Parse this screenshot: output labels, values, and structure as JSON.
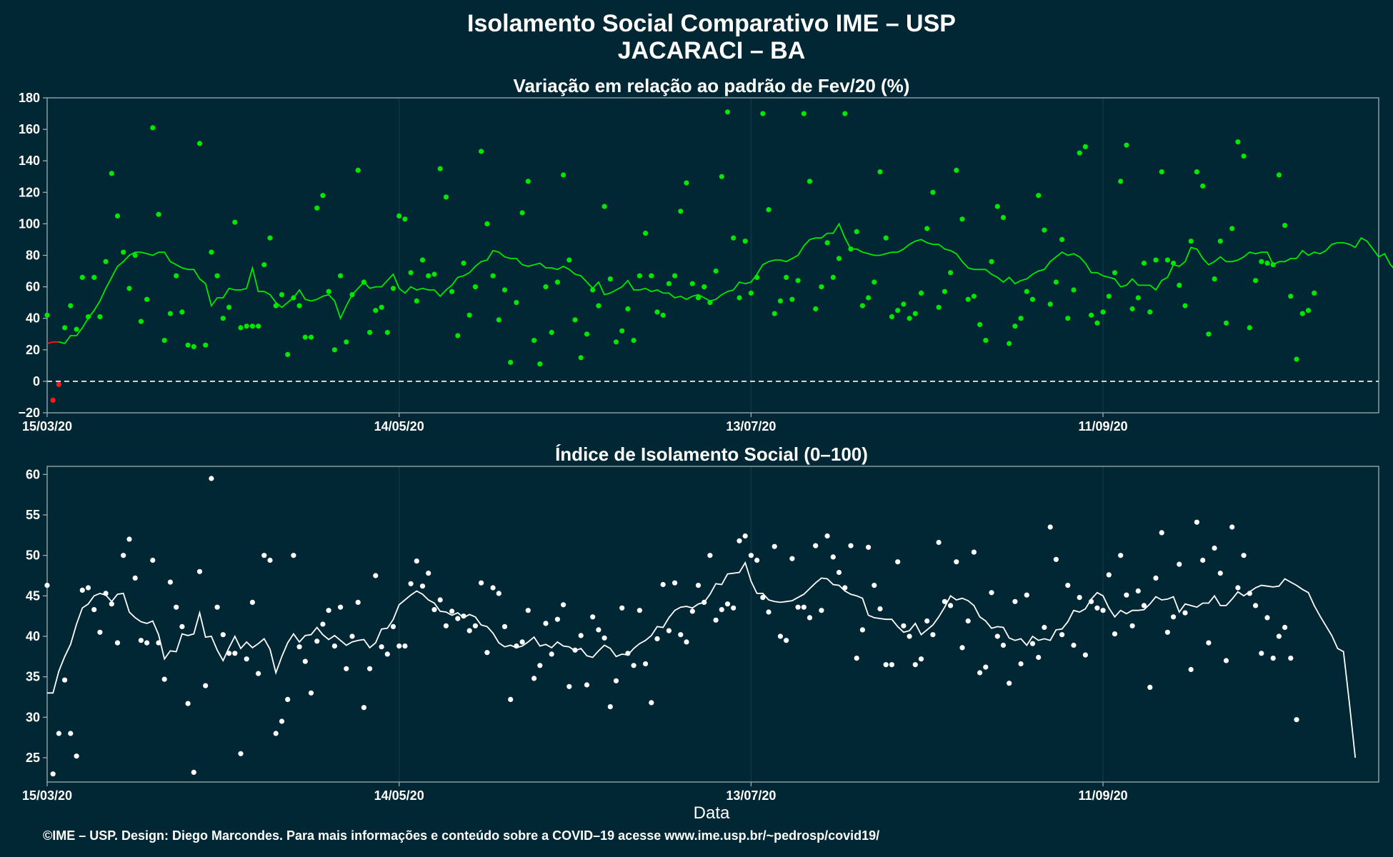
{
  "header": {
    "title": "Isolamento Social Comparativo IME – USP",
    "subtitle": "JACARACI – BA"
  },
  "footer": {
    "xlabel": "Data",
    "credit": "©IME – USP. Design: Diego Marcondes. Para mais informações e conteúdo sobre a COVID–19 acesse www.ime.usp.br/~pedrosp/covid19/"
  },
  "colors": {
    "background": "#002733",
    "axis": "#a9b7bd",
    "grid": "#12404b",
    "positive_points": "#00e800",
    "negative_points": "#ff1a1a",
    "index_points": "#ffffff"
  },
  "chart_data": [
    {
      "type": "scatter",
      "title": "Variação em relação ao padrão de Fev/20 (%)",
      "x_start": "2020-03-15",
      "x_end": "2020-10-28",
      "xlim": [
        "2020-03-15",
        "2020-10-28"
      ],
      "ylim": [
        -20,
        180
      ],
      "yticks": [
        -20,
        0,
        20,
        40,
        60,
        80,
        100,
        120,
        140,
        160,
        180
      ],
      "xticks": [
        "15/03/20",
        "14/05/20",
        "13/07/20",
        "11/09/20"
      ],
      "reference_line": 0,
      "grid": true,
      "series": [
        {
          "kind": "points",
          "values": [
            42,
            -12,
            -2,
            34,
            48,
            33,
            66,
            41,
            66,
            41,
            76,
            132,
            105,
            82,
            59,
            80,
            38,
            52,
            161,
            106,
            26,
            43,
            67,
            44,
            23,
            22,
            151,
            23,
            82,
            67,
            40,
            47,
            101,
            34,
            35,
            35,
            35,
            74,
            91,
            48,
            55,
            17,
            53,
            48,
            28,
            28,
            110,
            118,
            57,
            20,
            67,
            25,
            55,
            134,
            63,
            31,
            45,
            47,
            31,
            59,
            105,
            103,
            69,
            51,
            77,
            67,
            68,
            135,
            117,
            57,
            29,
            75,
            42,
            60,
            146,
            100,
            67,
            39,
            58,
            12,
            50,
            107,
            127,
            26,
            11,
            60,
            31,
            63,
            131,
            77,
            39,
            15,
            30,
            58,
            48,
            111,
            65,
            25,
            32,
            46,
            26,
            67,
            94,
            67,
            44,
            42,
            62,
            67,
            108,
            126,
            62,
            53,
            60,
            50,
            70,
            130,
            171,
            91,
            53,
            89,
            56,
            66,
            170,
            109,
            43,
            51,
            66,
            52,
            64,
            170,
            127,
            46,
            60,
            88,
            66,
            78,
            170,
            84,
            95,
            48,
            53,
            63,
            133,
            91,
            41,
            45,
            49,
            40,
            43,
            56,
            97,
            120,
            47,
            57,
            69,
            134,
            103,
            52,
            54,
            36,
            26,
            76,
            111,
            104,
            24,
            35,
            40,
            57,
            52,
            118,
            96,
            49,
            63,
            90,
            40,
            58,
            145,
            149,
            42,
            37,
            44,
            54,
            69,
            127,
            150,
            46,
            53,
            75,
            44,
            77,
            133,
            77,
            75,
            61,
            48,
            89,
            133,
            124,
            30,
            65,
            89,
            37,
            97,
            152,
            143,
            34,
            64,
            76,
            75,
            74,
            131,
            99,
            54,
            14,
            43,
            45,
            56
          ]
        },
        {
          "kind": "line",
          "values": [
            24,
            25,
            25,
            24,
            29,
            29,
            34,
            40,
            45,
            51,
            59,
            66,
            73,
            76,
            80,
            82,
            82,
            81,
            80,
            82,
            82,
            76,
            74,
            72,
            71,
            71,
            65,
            62,
            48,
            53,
            53,
            59,
            58,
            58,
            59,
            72,
            57,
            57,
            55,
            50,
            47,
            50,
            53,
            58,
            52,
            51,
            52,
            54,
            55,
            51,
            40,
            48,
            55,
            59,
            63,
            59,
            60,
            60,
            64,
            68,
            59,
            56,
            60,
            58,
            59,
            58,
            58,
            54,
            58,
            61,
            66,
            67,
            69,
            73,
            76,
            77,
            83,
            82,
            79,
            78,
            78,
            74,
            73,
            74,
            75,
            72,
            72,
            71,
            73,
            71,
            68,
            67,
            63,
            59,
            63,
            55,
            56,
            58,
            60,
            64,
            58,
            58,
            59,
            57,
            58,
            56,
            56,
            53,
            54,
            52,
            54,
            55,
            53,
            51,
            52,
            55,
            57,
            58,
            63,
            62,
            63,
            68,
            74,
            76,
            77,
            77,
            76,
            78,
            80,
            86,
            90,
            91,
            91,
            94,
            94,
            100,
            91,
            84,
            84,
            82,
            81,
            80,
            80,
            81,
            82,
            82,
            84,
            87,
            89,
            90,
            88,
            87,
            87,
            84,
            83,
            81,
            76,
            72,
            71,
            71,
            71,
            68,
            66,
            63,
            66,
            62,
            64,
            65,
            68,
            70,
            71,
            76,
            79,
            82,
            80,
            81,
            79,
            75,
            69,
            69,
            67,
            66,
            65,
            60,
            61,
            65,
            61,
            61,
            61,
            58,
            64,
            66,
            74,
            73,
            76,
            85,
            84,
            78,
            74,
            76,
            79,
            76,
            76,
            77,
            79,
            82,
            81,
            82,
            82,
            74,
            76,
            76,
            78,
            78,
            83,
            80,
            82,
            81,
            83,
            87,
            88,
            88,
            87,
            85,
            91,
            89,
            84,
            79,
            81,
            74,
            70,
            62,
            51
          ]
        }
      ]
    },
    {
      "type": "scatter",
      "title": "Índice de Isolamento Social (0–100)",
      "x_start": "2020-03-15",
      "x_end": "2020-10-28",
      "xlim": [
        "2020-03-15",
        "2020-10-28"
      ],
      "ylim": [
        22,
        61
      ],
      "yticks": [
        25,
        30,
        35,
        40,
        45,
        50,
        55,
        60
      ],
      "xticks": [
        "15/03/20",
        "14/05/20",
        "13/07/20",
        "11/09/20"
      ],
      "xlabel": "Data",
      "grid": true,
      "series": [
        {
          "kind": "points",
          "values": [
            46.3,
            23,
            28,
            34.6,
            28,
            25.2,
            45.7,
            46,
            43.3,
            40.5,
            45.3,
            44,
            39.2,
            50,
            52,
            47.2,
            39.5,
            39.2,
            49.4,
            39.2,
            34.7,
            46.7,
            43.6,
            41.2,
            31.7,
            23.2,
            48,
            33.9,
            59.5,
            43.6,
            40.2,
            37.9,
            37.9,
            25.5,
            37.2,
            44.2,
            35.4,
            50,
            49.4,
            28,
            29.5,
            32.2,
            50,
            38.7,
            36.9,
            33,
            39.4,
            41.5,
            43.2,
            38.8,
            43.6,
            36,
            40,
            44.2,
            31.2,
            36,
            47.5,
            38.7,
            37.8,
            41.2,
            38.8,
            38.8,
            46.5,
            49.3,
            46.2,
            47.8,
            43.3,
            44.5,
            41.3,
            43.1,
            42.2,
            42.5,
            40.7,
            41.3,
            46.6,
            38,
            46,
            45.3,
            41.2,
            32.2,
            38.8,
            39.3,
            43.2,
            34.8,
            36.4,
            41.6,
            37.8,
            42.1,
            43.9,
            33.8,
            38.3,
            40.1,
            34,
            42.4,
            40.8,
            39.8,
            31.3,
            34.5,
            43.5,
            37.9,
            36.4,
            43.2,
            36.6,
            31.8,
            39.7,
            46.4,
            40.7,
            46.6,
            40.2,
            39.3,
            43.1,
            46.3,
            44.2,
            50,
            42,
            43.3,
            44,
            43.5,
            51.8,
            52.4,
            50,
            49.4,
            44.8,
            43,
            51.1,
            40,
            39.5,
            49.6,
            43.6,
            43.6,
            42.3,
            51.2,
            43.2,
            52.4,
            49.8,
            47.9,
            46,
            51.2,
            37.3,
            40.8,
            51,
            46.3,
            43.4,
            36.5,
            36.5,
            49.2,
            41.3,
            40,
            36.5,
            37.2,
            41.9,
            40.2,
            51.6,
            44.3,
            43.8,
            49.2,
            38.6,
            41.9,
            50.4,
            35.5,
            36.2,
            45.4,
            40,
            38.9,
            34.2,
            44.3,
            36.6,
            45.1,
            39.1,
            37.4,
            41.1,
            53.5,
            49.5,
            40.2,
            46.3,
            38.9,
            44.8,
            37.7,
            44.3,
            43.5,
            43.2,
            47.6,
            40.3,
            50,
            45.1,
            41.3,
            45.6,
            43.8,
            33.7,
            47.2,
            52.8,
            40.5,
            42.4,
            48.9,
            42.9,
            35.9,
            54.1,
            49.4,
            39.2,
            50.9,
            47.8,
            37,
            53.5,
            46,
            50,
            45.3,
            43.8,
            37.9,
            42.3,
            37.3,
            40,
            41.1,
            37.3,
            29.7
          ]
        },
        {
          "kind": "line",
          "values": [
            33,
            33,
            35.7,
            37.5,
            39,
            41.5,
            43.5,
            44,
            45,
            45.3,
            45.1,
            44.3,
            45.2,
            45.3,
            43,
            42.3,
            41.8,
            41.6,
            41.9,
            40.2,
            37.2,
            38.2,
            38.1,
            40.3,
            40.1,
            40.3,
            42.9,
            39.9,
            40,
            38.3,
            37,
            38.6,
            40,
            38.5,
            39.3,
            38.6,
            39.1,
            39.7,
            38.4,
            35.5,
            37.5,
            39.2,
            40.3,
            39.3,
            40.1,
            40.2,
            41.1,
            40.2,
            39.6,
            40.1,
            39.5,
            38.9,
            39.3,
            39.5,
            39.6,
            38.6,
            39.2,
            40.9,
            41,
            42.1,
            43.9,
            44.5,
            45.1,
            45.6,
            45.2,
            44.5,
            44.1,
            43.1,
            43,
            42.6,
            42.9,
            42.3,
            42.7,
            42.4,
            41.4,
            41.2,
            40.4,
            39.2,
            38.7,
            38.9,
            38.6,
            38.8,
            39.3,
            39.9,
            38.8,
            39,
            38.6,
            39.3,
            38.8,
            38.7,
            38.2,
            38.5,
            37.6,
            37.4,
            38.2,
            38.9,
            38.5,
            37.5,
            37.8,
            37.7,
            38.5,
            39.1,
            39.5,
            40.1,
            41.2,
            41.1,
            42.3,
            43.2,
            43.6,
            43.7,
            43.5,
            44,
            44.2,
            45.2,
            46.5,
            46.4,
            47.7,
            47.8,
            47.9,
            49.1,
            46.8,
            45.3,
            45.3,
            44.5,
            44.3,
            44.2,
            44.3,
            44.4,
            44.8,
            45.2,
            45.9,
            46.6,
            47.2,
            47.1,
            46.4,
            46.3,
            45.6,
            45.2,
            45,
            44.7,
            42.6,
            42.3,
            42.2,
            42.1,
            42.1,
            41.2,
            40.5,
            40.7,
            41.6,
            40.2,
            40.8,
            41.4,
            42.4,
            43.6,
            45,
            44.5,
            44.7,
            44.4,
            43.8,
            42.4,
            41.9,
            41,
            41.2,
            41.1,
            39.8,
            39.5,
            39.7,
            38.9,
            40,
            39.5,
            39.7,
            39.5,
            40.8,
            40.9,
            41.8,
            43.2,
            43,
            43.4,
            44.6,
            45.4,
            45,
            43.5,
            42.4,
            43.2,
            42.8,
            43.2,
            43.2,
            43.3,
            44,
            44.9,
            44.5,
            44.6,
            44.9,
            43,
            44,
            43.8,
            43.6,
            44.1,
            44.1,
            45,
            43.8,
            43.8,
            44.6,
            45.5,
            45,
            45.5,
            46,
            46.3,
            46.2,
            46.1,
            46.2,
            47.1,
            46.7,
            46.3,
            45.8,
            45.4,
            43.8,
            42.5,
            41.3,
            40.1,
            38.5,
            38.1,
            31.8,
            25
          ]
        }
      ]
    }
  ]
}
